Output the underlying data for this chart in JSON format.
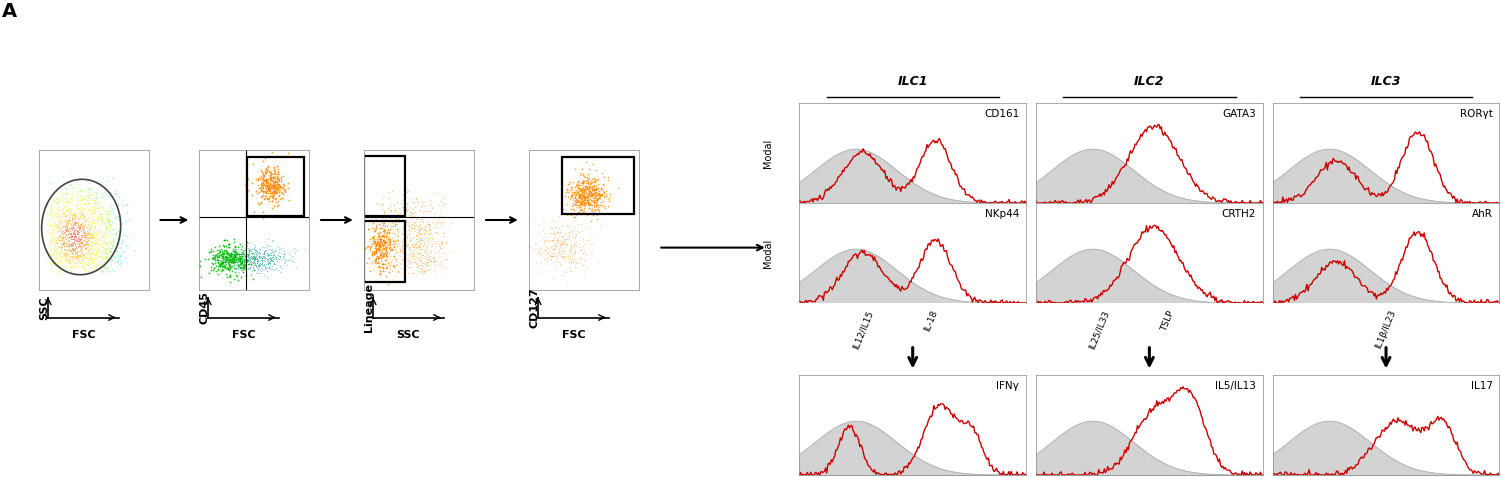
{
  "bg_color": "#ffffff",
  "panel_label": "A",
  "ilc_titles": [
    "ILC1",
    "ILC2",
    "ILC3"
  ],
  "row1_labels": [
    "CD161",
    "GATA3",
    "RORγt"
  ],
  "row2_labels": [
    "NKp44",
    "CRTH2",
    "AhR"
  ],
  "row3_labels": [
    "IFNγ",
    "IL5/IL13",
    "IL17"
  ],
  "stim_labels_ilc1": [
    "IL12/IL15",
    "IL-18"
  ],
  "stim_labels_ilc2": [
    "IL25/IL33",
    "TSLP"
  ],
  "stim_labels_ilc3": [
    "IL1β/IL23"
  ],
  "scatter_axes": [
    {
      "xlabel": "FSC",
      "ylabel": "SSC"
    },
    {
      "xlabel": "FSC",
      "ylabel": "CD45"
    },
    {
      "xlabel": "SSC",
      "ylabel": "Lineage"
    },
    {
      "xlabel": "FSC",
      "ylabel": "CD127"
    }
  ]
}
